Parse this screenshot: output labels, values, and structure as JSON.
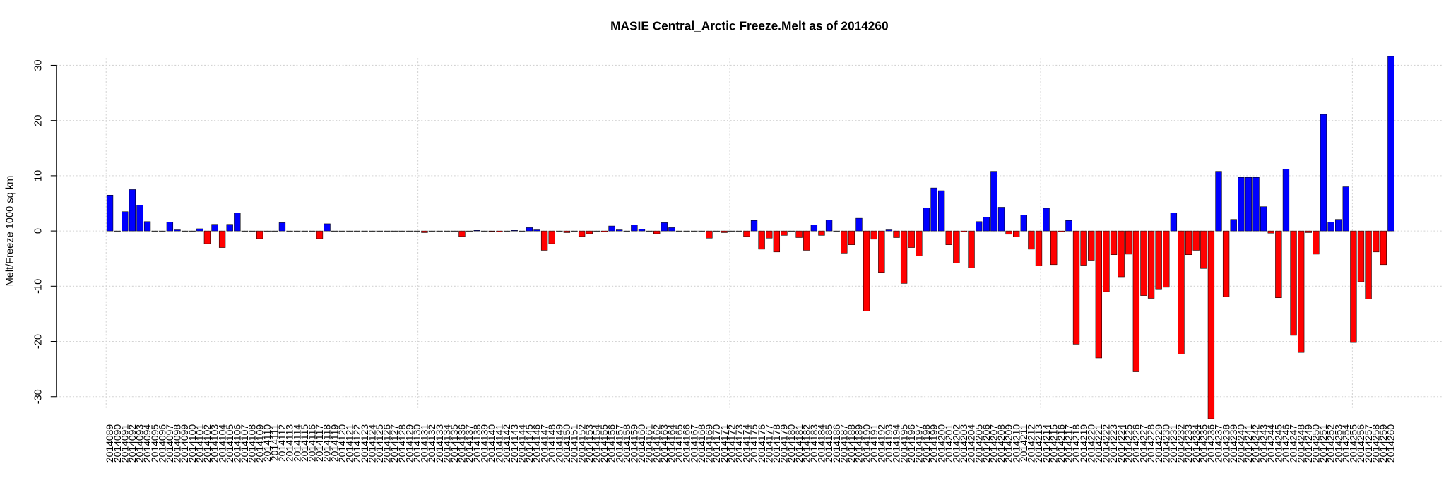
{
  "chart_data": {
    "type": "bar",
    "title": "MASIE Central_Arctic Freeze.Melt as of 2014260",
    "ylabel": "Melt/Freeze 1000 sq km",
    "categories": [
      "2014089",
      "2014090",
      "2014091",
      "2014092",
      "2014093",
      "2014094",
      "2014095",
      "2014096",
      "2014097",
      "2014098",
      "2014099",
      "2014100",
      "2014101",
      "2014102",
      "2014103",
      "2014104",
      "2014105",
      "2014106",
      "2014107",
      "2014108",
      "2014109",
      "2014110",
      "2014111",
      "2014112",
      "2014113",
      "2014114",
      "2014115",
      "2014116",
      "2014117",
      "2014118",
      "2014119",
      "2014120",
      "2014121",
      "2014122",
      "2014123",
      "2014124",
      "2014125",
      "2014126",
      "2014127",
      "2014128",
      "2014129",
      "2014130",
      "2014131",
      "2014132",
      "2014133",
      "2014134",
      "2014135",
      "2014136",
      "2014137",
      "2014138",
      "2014139",
      "2014140",
      "2014141",
      "2014142",
      "2014143",
      "2014144",
      "2014145",
      "2014146",
      "2014147",
      "2014148",
      "2014149",
      "2014150",
      "2014151",
      "2014152",
      "2014153",
      "2014154",
      "2014155",
      "2014156",
      "2014157",
      "2014158",
      "2014159",
      "2014160",
      "2014161",
      "2014162",
      "2014163",
      "2014164",
      "2014165",
      "2014166",
      "2014167",
      "2014168",
      "2014169",
      "2014170",
      "2014171",
      "2014172",
      "2014173",
      "2014174",
      "2014175",
      "2014176",
      "2014177",
      "2014178",
      "2014179",
      "2014180",
      "2014181",
      "2014182",
      "2014183",
      "2014184",
      "2014185",
      "2014186",
      "2014187",
      "2014188",
      "2014189",
      "2014190",
      "2014191",
      "2014192",
      "2014193",
      "2014194",
      "2014195",
      "2014196",
      "2014197",
      "2014198",
      "2014199",
      "2014200",
      "2014201",
      "2014202",
      "2014203",
      "2014204",
      "2014205",
      "2014206",
      "2014207",
      "2014208",
      "2014209",
      "2014210",
      "2014211",
      "2014212",
      "2014213",
      "2014214",
      "2014215",
      "2014216",
      "2014217",
      "2014218",
      "2014219",
      "2014220",
      "2014221",
      "2014222",
      "2014223",
      "2014224",
      "2014225",
      "2014226",
      "2014227",
      "2014228",
      "2014229",
      "2014230",
      "2014231",
      "2014232",
      "2014233",
      "2014234",
      "2014235",
      "2014236",
      "2014237",
      "2014238",
      "2014239",
      "2014240",
      "2014241",
      "2014242",
      "2014243",
      "2014244",
      "2014245",
      "2014246",
      "2014247",
      "2014248",
      "2014249",
      "2014250",
      "2014251",
      "2014252",
      "2014253",
      "2014254",
      "2014255",
      "2014256",
      "2014257",
      "2014258",
      "2014259",
      "2014260"
    ],
    "values": [
      6.5,
      0,
      3.5,
      7.5,
      4.7,
      1.7,
      0,
      0,
      1.6,
      0.2,
      0,
      0,
      0.4,
      -2.3,
      1.2,
      -3,
      1.2,
      3.3,
      0,
      0,
      -1.4,
      0,
      0,
      1.5,
      0,
      0,
      0,
      0,
      -1.4,
      1.3,
      0,
      0,
      0,
      0,
      0,
      0,
      0,
      0,
      0,
      0,
      0,
      0,
      -0.3,
      0,
      0,
      0,
      0,
      -1,
      0,
      0.1,
      0,
      -0.1,
      -0.2,
      0,
      0.1,
      0,
      0.6,
      0.2,
      -3.5,
      -2.3,
      0,
      -0.3,
      0,
      -1,
      -0.5,
      0,
      -0.2,
      0.9,
      0.2,
      0,
      1.1,
      0.3,
      0,
      -0.5,
      1.5,
      0.6,
      0,
      0,
      0,
      0,
      -1.3,
      0,
      -0.3,
      0,
      0,
      -1,
      1.9,
      -3.3,
      -1.3,
      -3.8,
      -0.8,
      0,
      -1.2,
      -3.5,
      1.1,
      -0.8,
      2,
      0,
      -4,
      -2.5,
      2.3,
      -14.5,
      -1.5,
      -7.5,
      0.2,
      -1.2,
      -9.5,
      -3,
      -4.5,
      4.2,
      7.8,
      7.3,
      -2.5,
      -5.8,
      -0.2,
      -6.7,
      1.7,
      2.5,
      10.8,
      4.3,
      -0.6,
      -1.1,
      2.9,
      -3.3,
      -6.3,
      4.1,
      -6.1,
      -0.2,
      1.9,
      -20.5,
      -6.2,
      -5.3,
      -23,
      -11,
      -4.3,
      -8.3,
      -4.2,
      -25.5,
      -11.7,
      -12.2,
      -10.5,
      -10.2,
      3.3,
      -22.3,
      -4.3,
      -3.5,
      -6.8,
      -34,
      10.8,
      -11.9,
      2.1,
      9.7,
      9.7,
      9.7,
      4.4,
      -0.4,
      -12.1,
      11.2,
      -18.9,
      -22,
      -0.3,
      -4.2,
      21.1,
      1.6,
      2.1,
      8,
      -20.2,
      -9.2,
      -12.3,
      -3.8,
      -6.1,
      31.6
    ],
    "positive_color": "#0000ff",
    "negative_color": "#ff0000",
    "ylim": [
      -35.5,
      33
    ],
    "yticks": [
      -30,
      -20,
      -10,
      0,
      10,
      20,
      30
    ],
    "grid": true
  }
}
